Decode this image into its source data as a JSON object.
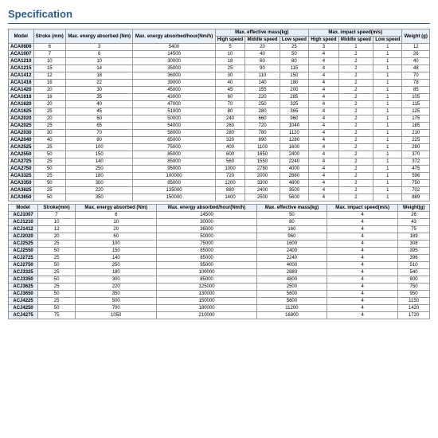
{
  "title": "Specification",
  "table1": {
    "headers": {
      "model": "Model",
      "stroke": "Stroke\n(mm)",
      "energy": "Max. energy\nabsorbed (Nm)",
      "hour": "Max. energy\nabsorbed/hour(Nm/h)",
      "mass": "Max. effective mass(kg)",
      "speed": "Max. impact speed(m/s)",
      "weight": "Weight\n(g)",
      "hs": "High speed",
      "ms": "Middle speed",
      "ls": "Low speed"
    },
    "rows": [
      [
        "ACA0806",
        "6",
        "3",
        "5400",
        "5",
        "20",
        "25",
        "3",
        "1",
        "1",
        "12"
      ],
      [
        "ACA1007",
        "7",
        "6",
        "14500",
        "10",
        "40",
        "50",
        "4",
        "2",
        "1",
        "26"
      ],
      [
        "ACA1210",
        "10",
        "10",
        "30000",
        "18",
        "60",
        "80",
        "4",
        "2",
        "1",
        "40"
      ],
      [
        "ACA1215",
        "15",
        "14",
        "35000",
        "25",
        "90",
        "115",
        "4",
        "2",
        "1",
        "48"
      ],
      [
        "ACA1412",
        "12",
        "18",
        "36000",
        "30",
        "110",
        "150",
        "4",
        "2",
        "1",
        "70"
      ],
      [
        "ACA1416",
        "16",
        "22",
        "39000",
        "40",
        "140",
        "180",
        "4",
        "2",
        "1",
        "78"
      ],
      [
        "ACA1420",
        "20",
        "30",
        "45000",
        "45",
        "155",
        "200",
        "4",
        "2",
        "1",
        "85"
      ],
      [
        "ACA1616",
        "16",
        "35",
        "43000",
        "60",
        "220",
        "285",
        "4",
        "2",
        "1",
        "105"
      ],
      [
        "ACA1620",
        "20",
        "40",
        "47000",
        "70",
        "250",
        "325",
        "4",
        "2",
        "1",
        "115"
      ],
      [
        "ACA1625",
        "25",
        "45",
        "51000",
        "80",
        "280",
        "365",
        "4",
        "2",
        "1",
        "125"
      ],
      [
        "ACA2020",
        "20",
        "60",
        "50000",
        "240",
        "660",
        "960",
        "4",
        "2",
        "1",
        "175"
      ],
      [
        "ACA2025",
        "25",
        "65",
        "54000",
        "260",
        "720",
        "1040",
        "4",
        "2",
        "1",
        "185"
      ],
      [
        "ACA2030",
        "30",
        "70",
        "58000",
        "280",
        "780",
        "1120",
        "4",
        "2",
        "1",
        "210"
      ],
      [
        "ACA2040",
        "40",
        "80",
        "65000",
        "320",
        "890",
        "1280",
        "4",
        "2",
        "1",
        "225"
      ],
      [
        "ACA2525",
        "25",
        "100",
        "75000",
        "400",
        "1100",
        "1600",
        "4",
        "2",
        "1",
        "290"
      ],
      [
        "ACA2550",
        "50",
        "150",
        "85000",
        "600",
        "1650",
        "2400",
        "4",
        "2",
        "1",
        "370"
      ],
      [
        "ACA2725",
        "25",
        "140",
        "85000",
        "560",
        "1550",
        "2240",
        "4",
        "2",
        "1",
        "372"
      ],
      [
        "ACA2750",
        "50",
        "250",
        "95000",
        "1000",
        "2780",
        "4000",
        "4",
        "2",
        "1",
        "475"
      ],
      [
        "ACA3325",
        "25",
        "180",
        "100000",
        "720",
        "2000",
        "2880",
        "4",
        "2",
        "1",
        "596"
      ],
      [
        "ACA3350",
        "50",
        "300",
        "85000",
        "1200",
        "3300",
        "4800",
        "4",
        "2",
        "1",
        "750"
      ],
      [
        "ACA3625",
        "25",
        "220",
        "135000",
        "880",
        "2400",
        "3500",
        "4",
        "2",
        "1",
        "702"
      ],
      [
        "ACA3650",
        "50",
        "350",
        "150000",
        "1400",
        "2500",
        "5600",
        "4",
        "2",
        "1",
        "889"
      ]
    ]
  },
  "table2": {
    "headers": {
      "model": "Model",
      "stroke": "Stroke(mm)",
      "energy": "Max. energy absorbed (Nm)",
      "hour": "Max. energy absorbed/hour(Nm/h)",
      "mass": "Max. effective mass(kg)",
      "speed": "Max. impact speed(m/s)",
      "weight": "Weight(g)"
    },
    "rows": [
      [
        "ACJ1007",
        "7",
        "6",
        "14500",
        "50",
        "4",
        "26"
      ],
      [
        "ACJ1210",
        "10",
        "10",
        "30000",
        "80",
        "4",
        "43"
      ],
      [
        "ACJ1412",
        "12",
        "20",
        "36000",
        "160",
        "4",
        "75"
      ],
      [
        "ACJ2020",
        "20",
        "60",
        "50000",
        "960",
        "4",
        "189"
      ],
      [
        "ACJ2525",
        "25",
        "100",
        "75000",
        "1600",
        "4",
        "308"
      ],
      [
        "ACJ2550",
        "50",
        "150",
        "85000",
        "2400",
        "4",
        "395"
      ],
      [
        "ACJ2725",
        "25",
        "140",
        "85000",
        "2240",
        "4",
        "396"
      ],
      [
        "ACJ2750",
        "50",
        "250",
        "95000",
        "4000",
        "4",
        "510"
      ],
      [
        "ACJ3325",
        "25",
        "180",
        "100000",
        "2880",
        "4",
        "540"
      ],
      [
        "ACJ3350",
        "50",
        "300",
        "85000",
        "4800",
        "4",
        "800"
      ],
      [
        "ACJ3625",
        "25",
        "220",
        "125000",
        "2500",
        "4",
        "750"
      ],
      [
        "ACJ3650",
        "50",
        "350",
        "130000",
        "5600",
        "4",
        "950"
      ],
      [
        "ACJ4225",
        "25",
        "500",
        "150000",
        "5600",
        "4",
        "1150"
      ],
      [
        "ACJ4250",
        "50",
        "700",
        "180000",
        "11200",
        "4",
        "1420"
      ],
      [
        "ACJ4275",
        "75",
        "1050",
        "210000",
        "16800",
        "4",
        "1720"
      ]
    ]
  }
}
